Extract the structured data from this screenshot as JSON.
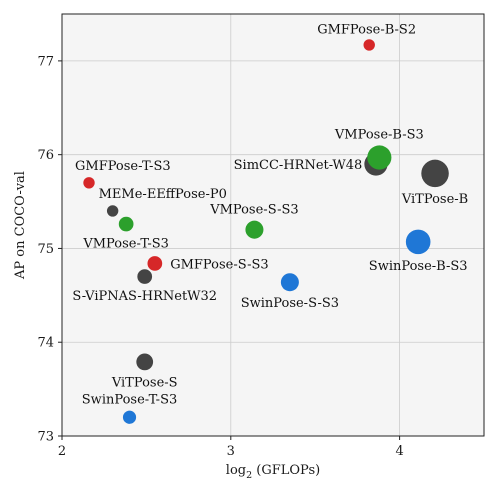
{
  "chart_data": {
    "type": "scatter",
    "xlabel_prefix": "log",
    "xlabel_sub": "2",
    "xlabel_suffix": " (GFLOPs)",
    "ylabel": "AP on COCO-val",
    "xlim": [
      2.0,
      4.5
    ],
    "ylim": [
      73.0,
      77.5
    ],
    "xticks": [
      2,
      3,
      4
    ],
    "yticks": [
      73,
      74,
      75,
      76,
      77
    ],
    "grid": true,
    "colors": {
      "gmfpose": "#d62728",
      "vmpose": "#2ca02c",
      "swinpose": "#1f77d6",
      "baseline": "#444444"
    },
    "points": [
      {
        "label": "GMFPose-B-S2",
        "x": 3.82,
        "y": 77.17,
        "size": 0.6,
        "color_key": "gmfpose",
        "anchor": "start",
        "label_pos": "upper-left"
      },
      {
        "label": "VMPose-B-S3",
        "x": 3.88,
        "y": 75.97,
        "size": 2.7,
        "color_key": "vmpose",
        "anchor": "middle",
        "label_pos": "above"
      },
      {
        "label": "SimCC-HRNet-W48",
        "x": 3.86,
        "y": 75.9,
        "size": 2.5,
        "color_key": "baseline",
        "anchor": "end",
        "label_pos": "left"
      },
      {
        "label": "ViTPose-B",
        "x": 4.21,
        "y": 75.8,
        "size": 3.5,
        "color_key": "baseline",
        "anchor": "middle",
        "label_pos": "below"
      },
      {
        "label": "SwinPose-B-S3",
        "x": 4.11,
        "y": 75.07,
        "size": 2.8,
        "color_key": "swinpose",
        "anchor": "middle",
        "label_pos": "below"
      },
      {
        "label": "GMFPose-T-S3",
        "x": 2.16,
        "y": 75.7,
        "size": 0.6,
        "color_key": "gmfpose",
        "anchor": "start",
        "label_pos": "above"
      },
      {
        "label": "MEMe-EEffPose-P0",
        "x": 2.3,
        "y": 75.4,
        "size": 0.6,
        "color_key": "baseline",
        "anchor": "start",
        "label_pos": "above"
      },
      {
        "label": "VMPose-T-S3",
        "x": 2.38,
        "y": 75.26,
        "size": 1.0,
        "color_key": "vmpose",
        "anchor": "middle",
        "label_pos": "below"
      },
      {
        "label": "VMPose-S-S3",
        "x": 3.14,
        "y": 75.2,
        "size": 1.5,
        "color_key": "vmpose",
        "anchor": "middle",
        "label_pos": "above"
      },
      {
        "label": "GMFPose-S-S3",
        "x": 2.55,
        "y": 74.84,
        "size": 1.0,
        "color_key": "gmfpose",
        "anchor": "start",
        "label_pos": "right"
      },
      {
        "label": "S-ViPNAS-HRNetW32",
        "x": 2.49,
        "y": 74.7,
        "size": 1.0,
        "color_key": "baseline",
        "anchor": "middle",
        "label_pos": "below"
      },
      {
        "label": "SwinPose-S-S3",
        "x": 3.35,
        "y": 74.64,
        "size": 1.5,
        "color_key": "swinpose",
        "anchor": "middle",
        "label_pos": "below"
      },
      {
        "label": "ViTPose-S",
        "x": 2.49,
        "y": 73.79,
        "size": 1.3,
        "color_key": "baseline",
        "anchor": "middle",
        "label_pos": "below"
      },
      {
        "label": "SwinPose-T-S3",
        "x": 2.4,
        "y": 73.2,
        "size": 0.8,
        "color_key": "swinpose",
        "anchor": "middle",
        "label_pos": "above"
      }
    ]
  }
}
